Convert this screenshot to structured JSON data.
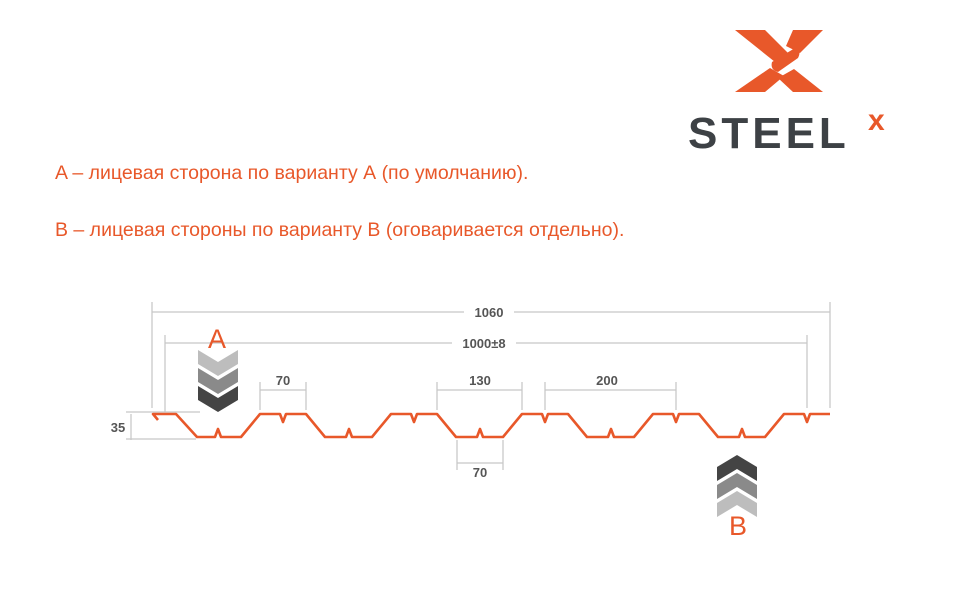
{
  "logo": {
    "text": "STEEL",
    "superscript": "x"
  },
  "notes": [
    "A – лицевая сторона по варианту А (по умолчанию).",
    "B – лицевая стороны по варианту В (оговаривается отдельно)."
  ],
  "diagram": {
    "overall_width": "1060",
    "working_width": "1000±8",
    "top_flat": "70",
    "trough_gap": "130",
    "pitch": "200",
    "bottom_flat": "70",
    "height": "35",
    "side_a": "A",
    "side_b": "B"
  },
  "colors": {
    "accent": "#e8582a",
    "logo_gray": "#3d4145",
    "dimension_line": "#c8c8c8"
  }
}
